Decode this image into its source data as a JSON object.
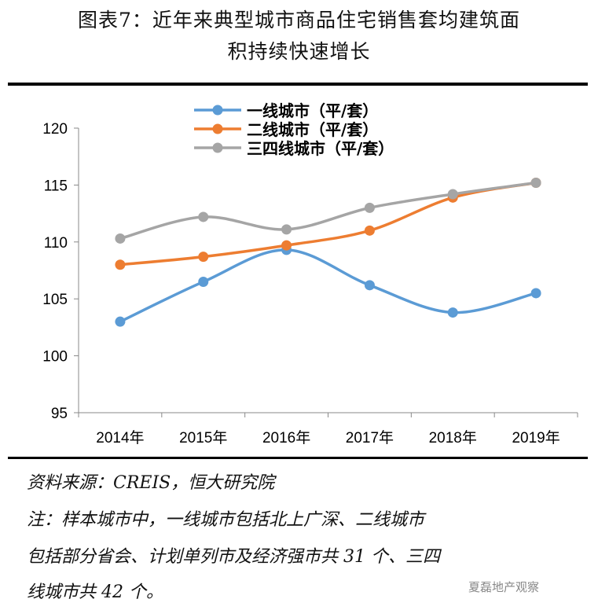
{
  "title_line1": "图表7：近年来典型城市商品住宅销售套均建筑面",
  "title_line2": "积持续快速增长",
  "chart_data": {
    "type": "line",
    "categories": [
      "2014年",
      "2015年",
      "2016年",
      "2017年",
      "2018年",
      "2019年"
    ],
    "ylim": [
      95,
      120
    ],
    "yticks": [
      95,
      100,
      105,
      110,
      115,
      120
    ],
    "grid": false,
    "legend_placement": "top",
    "series": [
      {
        "name": "一线城市（平/套）",
        "color": "#5B9BD5",
        "values": [
          103.0,
          106.5,
          109.3,
          106.2,
          103.8,
          105.5
        ]
      },
      {
        "name": "二线城市（平/套）",
        "color": "#ED7D31",
        "values": [
          108.0,
          108.7,
          109.7,
          111.0,
          113.9,
          115.2
        ]
      },
      {
        "name": "三四线城市（平/套）",
        "color": "#A5A5A5",
        "values": [
          110.3,
          112.2,
          111.1,
          113.0,
          114.2,
          115.2
        ]
      }
    ]
  },
  "source": "资料来源：CREIS，恒大研究院",
  "note_line1": "注：样本城市中，一线城市包括北上广深、二线城市",
  "note_line2": "包括部分省会、计划单列市及经济强市共 31 个、三四",
  "note_line3": "线城市共 42 个。",
  "watermark": "夏磊地产观察"
}
